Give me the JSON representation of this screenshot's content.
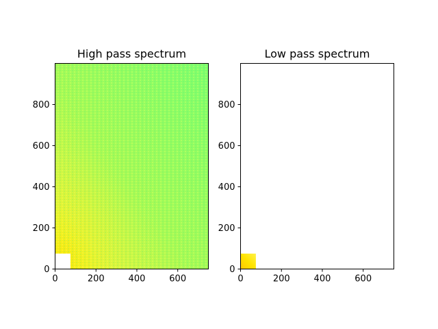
{
  "chart_data": [
    {
      "type": "heatmap",
      "title": "High pass spectrum",
      "xlabel": "",
      "ylabel": "",
      "xlim": [
        0,
        750
      ],
      "ylim": [
        0,
        1000
      ],
      "xticks": [
        0,
        200,
        400,
        600
      ],
      "yticks": [
        0,
        200,
        400,
        600,
        800
      ],
      "mask": {
        "x": [
          0,
          75
        ],
        "y": [
          0,
          75
        ],
        "value": "empty"
      },
      "colors": {
        "low_freq": "#ffe600",
        "mid_freq": "#e7f734",
        "high_freq": "#7dff6e"
      }
    },
    {
      "type": "heatmap",
      "title": "Low pass spectrum",
      "xlabel": "",
      "ylabel": "",
      "xlim": [
        0,
        750
      ],
      "ylim": [
        0,
        1000
      ],
      "xticks": [
        0,
        200,
        400,
        600
      ],
      "yticks": [
        0,
        200,
        400,
        600,
        800
      ],
      "passband": {
        "x": [
          0,
          75
        ],
        "y": [
          0,
          75
        ],
        "value": "filled"
      },
      "colors": {
        "passband": "#ffd800"
      }
    }
  ]
}
